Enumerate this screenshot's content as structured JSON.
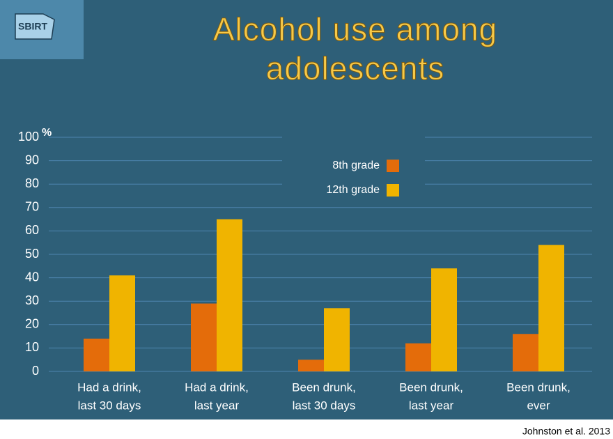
{
  "logo": "SBIRT",
  "source": "Johnston et al. 2013",
  "chart_data": {
    "type": "bar",
    "title": "Alcohol use among adolescents",
    "y_unit": "%",
    "categories": [
      [
        "Had a drink,",
        "last 30 days"
      ],
      [
        "Had a drink,",
        "last year"
      ],
      [
        "Been drunk,",
        "last 30 days"
      ],
      [
        "Been drunk,",
        "last year"
      ],
      [
        "Been drunk,",
        "ever"
      ]
    ],
    "series": [
      {
        "name": "8th grade",
        "color": "#e46c0a",
        "values": [
          14,
          29,
          5,
          12,
          16
        ]
      },
      {
        "name": "12th grade",
        "color": "#f0b400",
        "values": [
          41,
          65,
          27,
          44,
          54
        ]
      }
    ],
    "ylim": [
      0,
      100
    ],
    "yticks": [
      0,
      10,
      20,
      30,
      40,
      50,
      60,
      70,
      80,
      90,
      100
    ],
    "grid": true
  }
}
